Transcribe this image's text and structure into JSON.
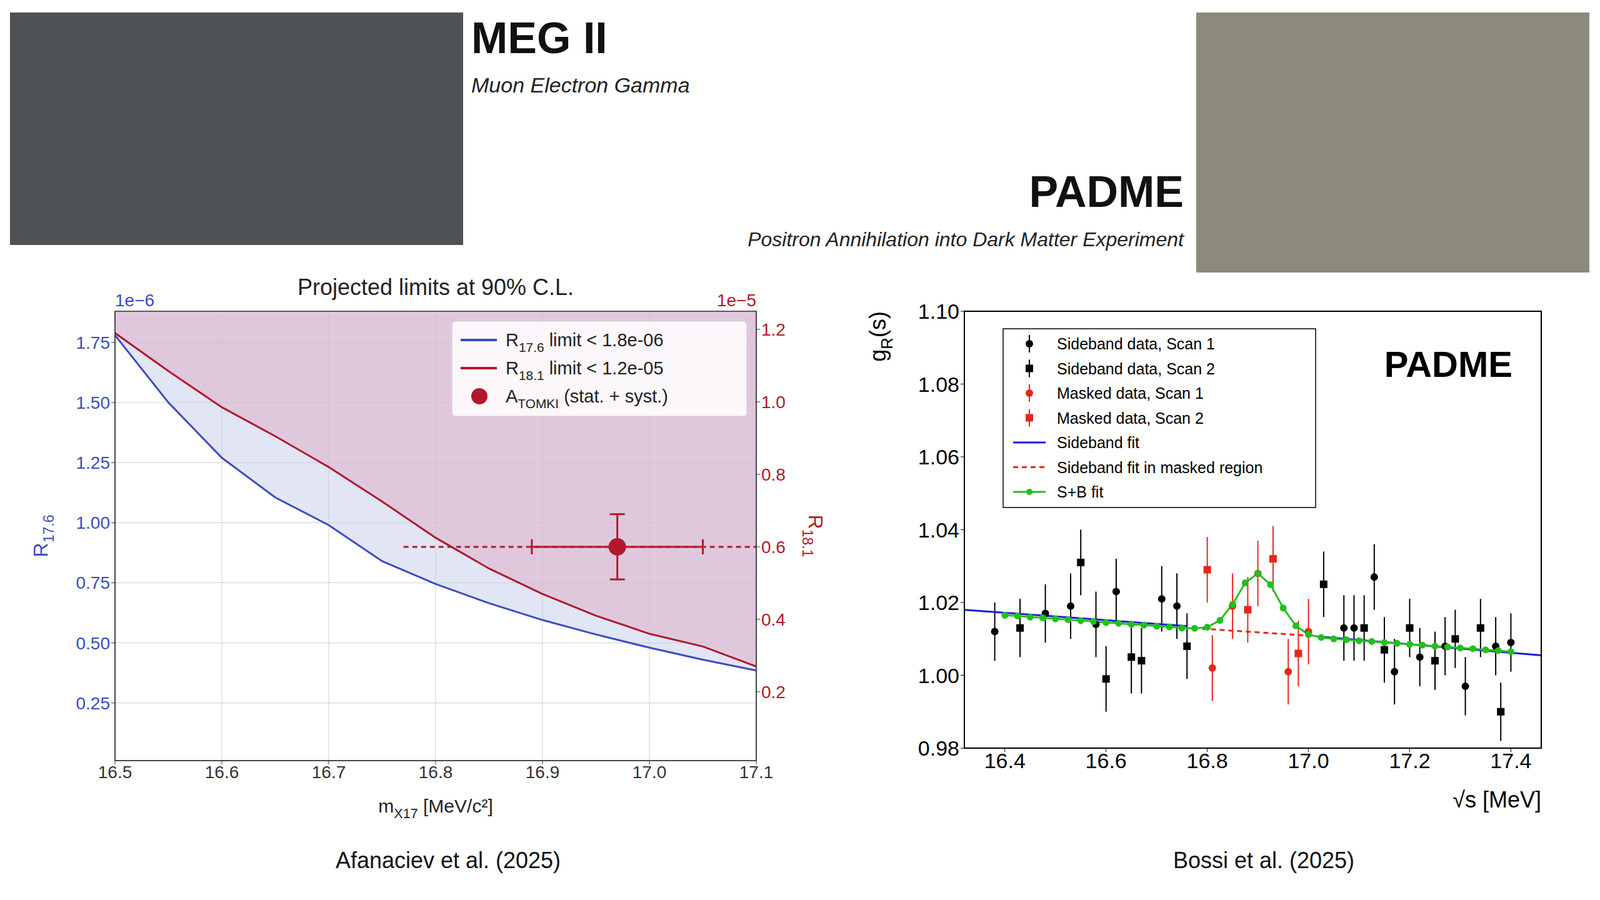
{
  "slide": {
    "panels": [
      {
        "title": "MEG II",
        "subtitle": "Muon Electron Gamma"
      },
      {
        "title": "PADME",
        "subtitle": "Positron Annihilation into Dark Matter Experiment"
      }
    ]
  },
  "chart_data": [
    {
      "type": "line",
      "title": "Projected limits at 90% C.L.",
      "caption": "Afanaciev et al. (2025)",
      "xlabel": "mX17 [MeV/c²]",
      "ylabel": "R17.6",
      "y2label": "R18.1",
      "y_offset_label": "1e−6",
      "y2_offset_label": "1e−5",
      "xlim": [
        16.5,
        17.1
      ],
      "xticks": [
        16.5,
        16.6,
        16.7,
        16.8,
        16.9,
        {
          "value": 17.0,
          "label": "17.0"
        },
        17.1
      ],
      "ylim": [
        0.01,
        1.88
      ],
      "yticks": [
        0.25,
        {
          "value": 0.5,
          "label": "0.50"
        },
        0.75,
        {
          "value": 1.0,
          "label": "1.00"
        },
        1.25,
        {
          "value": 1.5,
          "label": "1.50"
        },
        1.75
      ],
      "y2lim": [
        0.01,
        1.25
      ],
      "y2ticks": [
        0.2,
        0.4,
        0.6,
        0.8,
        {
          "value": 1.0,
          "label": "1.0"
        },
        1.2
      ],
      "grid": true,
      "legend": "upper right",
      "x": [
        16.5,
        16.55,
        16.6,
        16.65,
        16.7,
        16.75,
        16.8,
        16.85,
        16.9,
        16.95,
        17.0,
        17.05,
        17.1
      ],
      "series": [
        {
          "name": "R17.6 limit < 1.8e-06",
          "color": "#3b4cc0",
          "values": [
            1.78,
            1.5,
            1.27,
            1.105,
            0.99,
            0.84,
            0.745,
            0.665,
            0.595,
            0.535,
            0.48,
            0.43,
            0.385
          ]
        },
        {
          "name": "R18.1 limit < 1.2e-05",
          "color": "#b2182b",
          "axis": "y2",
          "values": [
            1.19,
            1.085,
            0.985,
            0.905,
            0.82,
            0.725,
            0.625,
            0.54,
            0.47,
            0.41,
            0.36,
            0.325,
            0.27
          ]
        },
        {
          "name": "ATOMKI (stat. + syst.)",
          "type": "scatter",
          "marker": "o",
          "color": "#b2182b",
          "axis": "y2",
          "x": [
            16.97
          ],
          "values": [
            0.6
          ],
          "yerr": [
            0.09
          ],
          "xerr_stat": [
            0.08
          ],
          "xerr_total": [
            0.2
          ]
        }
      ]
    },
    {
      "type": "scatter",
      "caption": "Bossi et al. (2025)",
      "annotation": "PADME",
      "xlabel": "√s [MeV]",
      "ylabel": "gR(s)",
      "xlim": [
        16.32,
        17.46
      ],
      "xticks": [
        16.4,
        16.6,
        16.8,
        {
          "value": 17.0,
          "label": "17.0"
        },
        17.2,
        17.4
      ],
      "ylim": [
        0.98,
        1.1
      ],
      "yticks": [
        0.98,
        {
          "value": 1.0,
          "label": "1.00"
        },
        1.02,
        1.04,
        1.06,
        1.08,
        {
          "value": 1.1,
          "label": "1.10"
        }
      ],
      "grid": false,
      "legend": "upper left",
      "series": [
        {
          "name": "Sideband data, Scan 1",
          "type": "scatter",
          "marker": "o",
          "color": "#000000",
          "x": [
            16.38,
            16.48,
            16.53,
            16.58,
            16.62,
            16.71,
            16.74,
            17.07,
            17.09,
            17.13,
            17.17,
            17.22,
            17.27,
            17.31,
            17.37,
            17.4
          ],
          "values": [
            1.012,
            1.017,
            1.019,
            1.014,
            1.023,
            1.021,
            1.019,
            1.013,
            1.013,
            1.027,
            1.001,
            1.005,
            1.008,
            0.997,
            1.008,
            1.009
          ],
          "yerr": [
            0.008,
            0.008,
            0.009,
            0.009,
            0.009,
            0.009,
            0.009,
            0.009,
            0.009,
            0.009,
            0.009,
            0.008,
            0.008,
            0.008,
            0.008,
            0.008
          ]
        },
        {
          "name": "Sideband data, Scan 2",
          "type": "scatter",
          "marker": "s",
          "color": "#000000",
          "x": [
            16.43,
            16.55,
            16.6,
            16.65,
            16.67,
            16.76,
            17.03,
            17.11,
            17.15,
            17.2,
            17.25,
            17.29,
            17.34,
            17.38
          ],
          "values": [
            1.013,
            1.031,
            0.999,
            1.005,
            1.004,
            1.008,
            1.025,
            1.013,
            1.007,
            1.013,
            1.004,
            1.01,
            1.013,
            0.99
          ],
          "yerr": [
            0.008,
            0.009,
            0.009,
            0.01,
            0.009,
            0.009,
            0.009,
            0.009,
            0.009,
            0.008,
            0.008,
            0.008,
            0.008,
            0.008
          ]
        },
        {
          "name": "Masked data, Scan 1",
          "type": "scatter",
          "marker": "o",
          "color": "#e8261c",
          "x": [
            16.81,
            16.85,
            16.9,
            16.96,
            17.0
          ],
          "values": [
            1.002,
            1.019,
            1.028,
            1.001,
            1.012
          ],
          "yerr": [
            0.009,
            0.009,
            0.009,
            0.009,
            0.009
          ]
        },
        {
          "name": "Masked data, Scan 2",
          "type": "scatter",
          "marker": "s",
          "color": "#e8261c",
          "x": [
            16.8,
            16.88,
            16.93,
            16.98
          ],
          "values": [
            1.029,
            1.018,
            1.032,
            1.006
          ],
          "yerr": [
            0.009,
            0.009,
            0.009,
            0.009
          ]
        },
        {
          "name": "Sideband fit",
          "type": "line",
          "line_style": "solid",
          "color": "#1a1adf",
          "x": [
            16.32,
            16.76,
            16.9,
            17.03,
            17.46
          ],
          "values": [
            1.018,
            1.0135,
            null,
            1.0105,
            1.0055
          ]
        },
        {
          "name": "Sideband fit in masked region",
          "type": "line",
          "line_style": "dashed",
          "color": "#e8261c",
          "x": [
            16.79,
            16.99
          ],
          "values": [
            1.0128,
            1.011
          ]
        },
        {
          "name": "S+B fit",
          "type": "line",
          "line_style": "solid",
          "marker": "o",
          "color": "#22c01e",
          "x": [
            16.4,
            16.425,
            16.45,
            16.475,
            16.5,
            16.525,
            16.55,
            16.575,
            16.6,
            16.625,
            16.65,
            16.675,
            16.7,
            16.725,
            16.75,
            16.775,
            16.8,
            16.825,
            16.85,
            16.875,
            16.9,
            16.925,
            16.95,
            16.975,
            17.0,
            17.025,
            17.05,
            17.075,
            17.1,
            17.125,
            17.15,
            17.175,
            17.2,
            17.225,
            17.25,
            17.275,
            17.3,
            17.325,
            17.35,
            17.375,
            17.4
          ],
          "values": [
            1.0165,
            1.0163,
            1.016,
            1.0158,
            1.0155,
            1.0153,
            1.015,
            1.0148,
            1.0145,
            1.0143,
            1.014,
            1.0138,
            1.0135,
            1.0133,
            1.013,
            1.0129,
            1.0132,
            1.0151,
            1.0195,
            1.0254,
            1.028,
            1.0249,
            1.0185,
            1.0136,
            1.0112,
            1.0104,
            1.01,
            1.0098,
            1.0095,
            1.0093,
            1.009,
            1.0088,
            1.0085,
            1.0083,
            1.008,
            1.0078,
            1.0075,
            1.0073,
            1.007,
            1.0068,
            1.0065
          ]
        }
      ]
    }
  ]
}
